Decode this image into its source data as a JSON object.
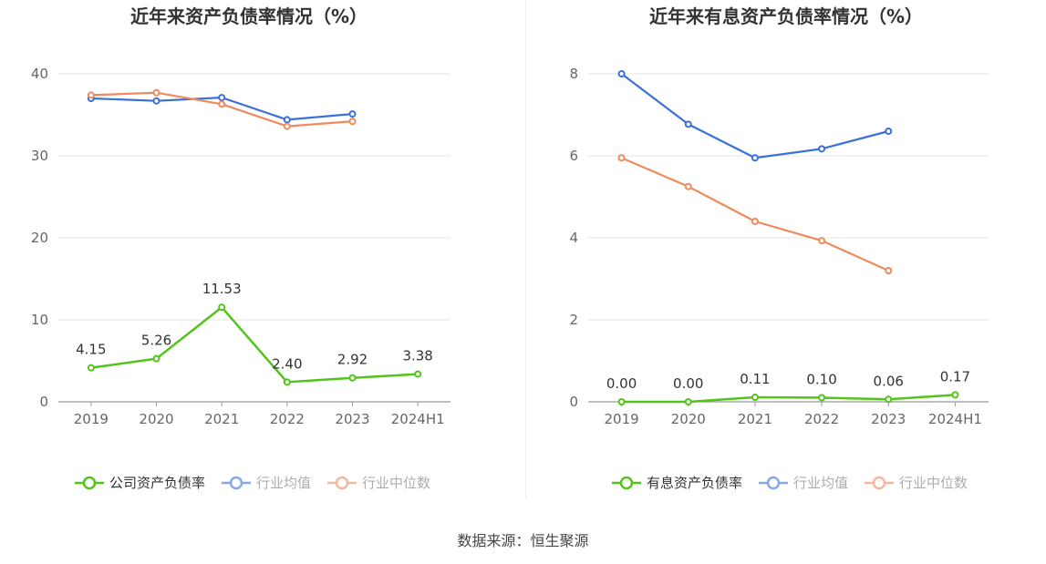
{
  "source_text": "数据来源：恒生聚源",
  "colors": {
    "company": "#52c41a",
    "avg": "#3a6fdc",
    "median": "#f08a5d",
    "grid": "#e6e6e6",
    "axis": "#999999",
    "text": "#333333",
    "tick": "#666666"
  },
  "chart_data": [
    {
      "type": "line",
      "title": "近年来资产负债率情况（%）",
      "categories": [
        "2019",
        "2020",
        "2021",
        "2022",
        "2023",
        "2024H1"
      ],
      "yticks": [
        "0",
        "10",
        "20",
        "30",
        "40"
      ],
      "ylim": [
        0,
        40
      ],
      "series": [
        {
          "name": "公司资产负债率",
          "key": "company",
          "values": [
            4.15,
            5.26,
            11.53,
            2.4,
            2.92,
            3.38
          ],
          "labels": [
            "4.15",
            "5.26",
            "11.53",
            "2.40",
            "2.92",
            "3.38"
          ]
        },
        {
          "name": "行业均值",
          "key": "avg",
          "values": [
            37.0,
            36.7,
            37.1,
            34.4,
            35.1,
            null
          ]
        },
        {
          "name": "行业中位数",
          "key": "median",
          "values": [
            37.4,
            37.7,
            36.3,
            33.6,
            34.2,
            null
          ]
        }
      ],
      "legend": "bottom-center",
      "grid": true
    },
    {
      "type": "line",
      "title": "近年来有息资产负债率情况（%）",
      "categories": [
        "2019",
        "2020",
        "2021",
        "2022",
        "2023",
        "2024H1"
      ],
      "yticks": [
        "0",
        "2",
        "4",
        "6",
        "8"
      ],
      "ylim": [
        0,
        8
      ],
      "series": [
        {
          "name": "有息资产负债率",
          "key": "company",
          "values": [
            0.0,
            0.0,
            0.11,
            0.1,
            0.06,
            0.17
          ],
          "labels": [
            "0.00",
            "0.00",
            "0.11",
            "0.10",
            "0.06",
            "0.17"
          ]
        },
        {
          "name": "行业均值",
          "key": "avg",
          "values": [
            8.0,
            6.77,
            5.95,
            6.17,
            6.6,
            null
          ]
        },
        {
          "name": "行业中位数",
          "key": "median",
          "values": [
            5.95,
            5.25,
            4.4,
            3.93,
            3.2,
            null
          ]
        }
      ],
      "legend": "bottom-center",
      "grid": true
    }
  ]
}
